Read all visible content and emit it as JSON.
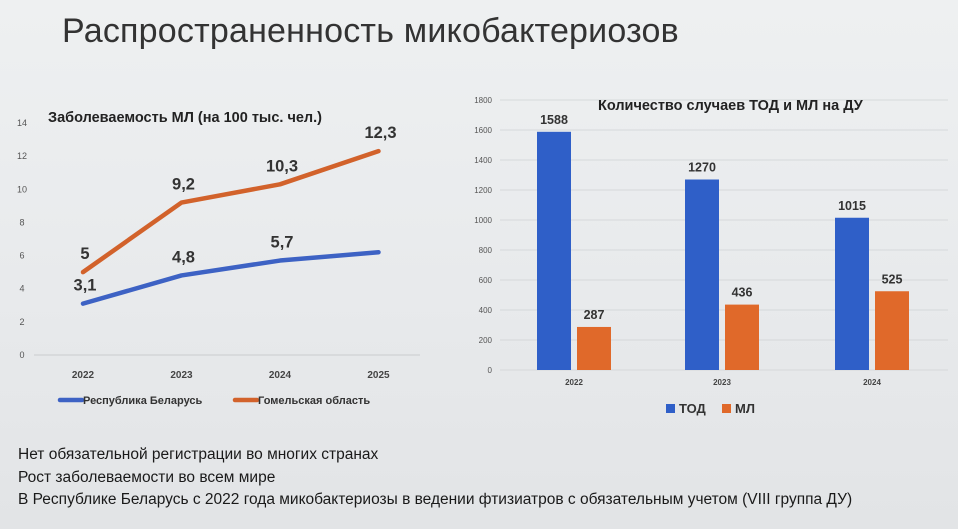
{
  "slide": {
    "title": "Распространенность микобактериозов"
  },
  "chart_data": [
    {
      "type": "line",
      "title": "Заболеваемость МЛ (на 100 тыс. чел.)",
      "categories": [
        "2022",
        "2023",
        "2024",
        "2025"
      ],
      "y_ticks": [
        "0",
        "2",
        "4",
        "6",
        "8",
        "10",
        "12",
        "14"
      ],
      "ylim": [
        0,
        14
      ],
      "series": [
        {
          "name": "Республика Беларусь",
          "values": [
            3.1,
            4.8,
            5.7,
            6.2
          ],
          "labels": [
            "3,1",
            "4,8",
            "5,7",
            ""
          ],
          "color": "#3d62c4"
        },
        {
          "name": "Гомельская область",
          "values": [
            5,
            9.2,
            10.3,
            12.3
          ],
          "labels": [
            "5",
            "9,2",
            "10,3",
            "12,3"
          ],
          "color": "#d2622b"
        }
      ],
      "legend": "bottom",
      "grid": false
    },
    {
      "type": "bar",
      "title": "Количество случаев ТОД и МЛ на ДУ",
      "categories": [
        "2022",
        "2023",
        "2024"
      ],
      "y_ticks": [
        "0",
        "200",
        "400",
        "600",
        "800",
        "1000",
        "1200",
        "1400",
        "1600",
        "1800"
      ],
      "ylim": [
        0,
        1800
      ],
      "series": [
        {
          "name": "ТОД",
          "values": [
            1588,
            1270,
            1015
          ],
          "color": "#2f5fc8"
        },
        {
          "name": "МЛ",
          "values": [
            287,
            436,
            525
          ],
          "color": "#e0692a"
        }
      ],
      "legend": "bottom",
      "grid": true
    }
  ],
  "notes": [
    "Нет обязательной регистрации во многих странах",
    "Рост заболеваемости во всем мире",
    "В Республике Беларусь с 2022 года микобактериозы в ведении фтизиатров с обязательным учетом (VIII группа ДУ)"
  ]
}
